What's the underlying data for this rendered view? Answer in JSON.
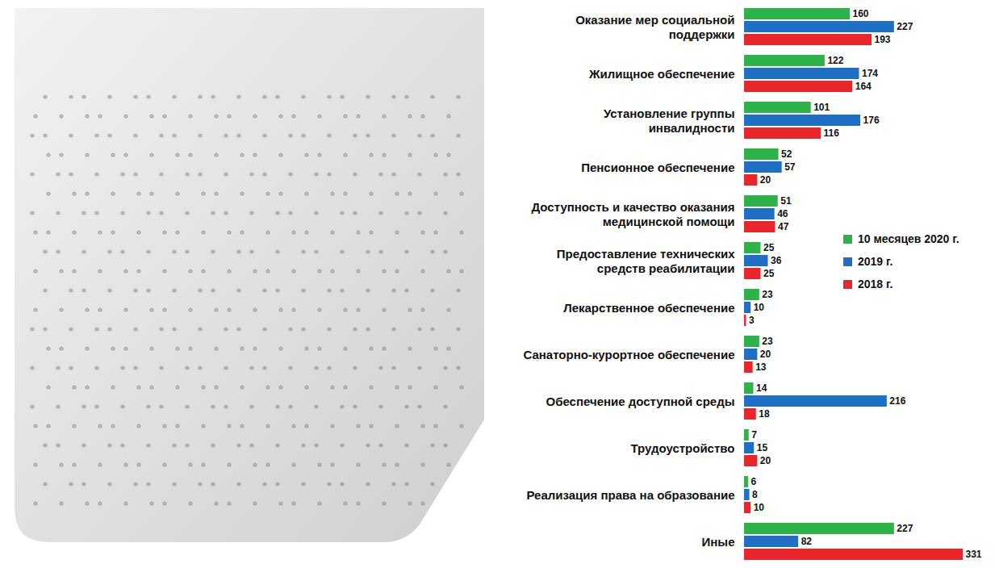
{
  "chart_data": {
    "type": "bar",
    "orientation": "horizontal",
    "categories": [
      "Оказание мер социальной поддержки",
      "Жилищное обеспечение",
      "Установление группы инвалидности",
      "Пенсионное обеспечение",
      "Доступность и качество оказания медицинской помощи",
      "Предоставление технических средств реабилитации",
      "Лекарственное обеспечение",
      "Санаторно-курортное обеспечение",
      "Обеспечение доступной среды",
      "Трудоустройство",
      "Реализация права на образование",
      "Иные"
    ],
    "series": [
      {
        "name": "10 месяцев 2020 г.",
        "color": "#2db34a",
        "values": [
          160,
          122,
          101,
          52,
          51,
          25,
          23,
          23,
          14,
          7,
          6,
          227
        ]
      },
      {
        "name": "2019 г.",
        "color": "#1f6fc5",
        "values": [
          227,
          174,
          176,
          57,
          46,
          36,
          10,
          20,
          216,
          15,
          8,
          82
        ]
      },
      {
        "name": "2018 г.",
        "color": "#e8262b",
        "values": [
          193,
          164,
          116,
          20,
          47,
          25,
          3,
          13,
          18,
          20,
          10,
          331
        ]
      }
    ],
    "xlim": [
      0,
      331
    ],
    "data_labels": true,
    "tick_labels": "y",
    "legend": "right"
  }
}
